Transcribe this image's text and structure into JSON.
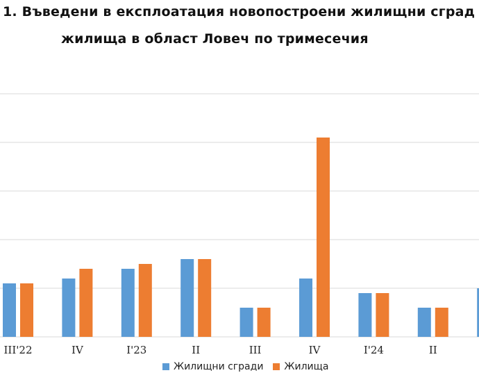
{
  "title": {
    "line1": "1. Въведени в експлоатация новопостроени жилищни сград",
    "line2": "жилища в област Ловеч по тримесечия"
  },
  "colors": {
    "buildings": "#5b9bd5",
    "dwellings": "#ed7d31",
    "grid": "#d9d9d9"
  },
  "legend": {
    "buildings": "Жилищни сгради",
    "dwellings": "Жилища"
  },
  "chart_data": {
    "type": "bar",
    "title": "1. Въведени в експлоатация новопостроени жилищни сград жилища в област Ловеч по тримесечия",
    "categories": [
      "III'22",
      "IV",
      "I'23",
      "II",
      "III",
      "IV",
      "I'24",
      "II",
      ""
    ],
    "series": [
      {
        "name": "Жилищни сгради",
        "values": [
          11,
          12,
          14,
          16,
          6,
          12,
          9,
          6,
          10
        ]
      },
      {
        "name": "Жилища",
        "values": [
          11,
          14,
          15,
          16,
          6,
          41,
          9,
          6,
          null
        ]
      }
    ],
    "ylim": [
      0,
      50
    ],
    "grid": true,
    "legend_position": "bottom",
    "ytick_step": 10
  }
}
